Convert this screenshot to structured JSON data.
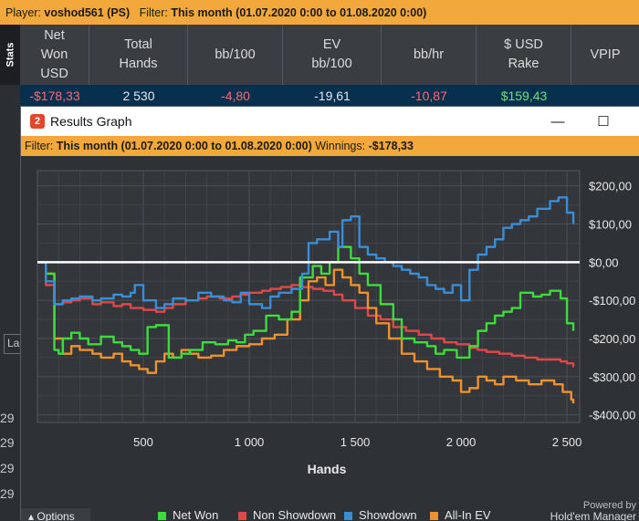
{
  "player_bar": {
    "player_label": "Player:",
    "player_name": "voshod561 (PS)",
    "filter_label": "Filter:",
    "filter_value": "This month (01.07.2020 0:00 to 01.08.2020 0:00)"
  },
  "stats_tab_label": "Stats",
  "stats_columns": [
    "Net\nWon\nUSD",
    "Total\nHands",
    "bb/100",
    "EV\nbb/100",
    "bb/hr",
    "$ USD\nRake",
    "VPIP"
  ],
  "stats_values": [
    "-$178,33",
    "2 530",
    "-4,80",
    "-19,61",
    "-10,87",
    "$159,43",
    ""
  ],
  "stats_colors": [
    "#ff6b6b",
    "#e6e6e6",
    "#ff6b6b",
    "#e6e6e6",
    "#ff6b6b",
    "#6fe07a",
    "#e6e6e6"
  ],
  "left_marks": [
    "29",
    "29",
    "29",
    "29"
  ],
  "la_text": "La",
  "window": {
    "icon_label": "2",
    "title": "Results Graph",
    "minimize_glyph": "—",
    "maximize_glyph": "☐"
  },
  "graph_filter": {
    "filter_label": "Filter:",
    "filter_value": "This month (01.07.2020 0:00 to 01.08.2020 0:00)",
    "winnings_label": "Winnings:",
    "winnings_value": "-$178,33"
  },
  "chart_data": {
    "type": "line",
    "xlabel": "Hands",
    "ylabel": "",
    "xlim": [
      0,
      2560
    ],
    "ylim": [
      -420,
      240
    ],
    "x_ticks": [
      500,
      1000,
      1500,
      2000,
      2500
    ],
    "x_tick_labels": [
      "500",
      "1 000",
      "1 500",
      "2 000",
      "2 500"
    ],
    "y_ticks": [
      200,
      100,
      0,
      -100,
      -200,
      -300,
      -400
    ],
    "y_tick_labels": [
      "$200,00",
      "$100,00",
      "$0,00",
      "-$100,00",
      "-$200,00",
      "-$300,00",
      "-$400,00"
    ],
    "grid": true,
    "zero_line": true,
    "legend_position": "bottom",
    "series": [
      {
        "name": "Net Won",
        "color": "#3ddc3d",
        "x": [
          0,
          40,
          80,
          100,
          120,
          160,
          200,
          240,
          300,
          360,
          400,
          440,
          480,
          520,
          560,
          620,
          680,
          720,
          780,
          840,
          900,
          940,
          980,
          1020,
          1080,
          1140,
          1200,
          1240,
          1300,
          1340,
          1380,
          1420,
          1480,
          1520,
          1560,
          1620,
          1680,
          1720,
          1780,
          1840,
          1880,
          1920,
          1980,
          2040,
          2080,
          2120,
          2160,
          2200,
          2240,
          2280,
          2340,
          2380,
          2420,
          2470,
          2500,
          2530
        ],
        "y": [
          0,
          -30,
          -230,
          -240,
          -200,
          -185,
          -200,
          -215,
          -195,
          -210,
          -220,
          -230,
          -240,
          -170,
          -165,
          -250,
          -240,
          -230,
          -210,
          -215,
          -205,
          -210,
          -190,
          -180,
          -140,
          -150,
          -130,
          -40,
          -10,
          -30,
          0,
          40,
          10,
          -30,
          -60,
          -110,
          -150,
          -200,
          -210,
          -220,
          -240,
          -230,
          -250,
          -220,
          -180,
          -160,
          -140,
          -130,
          -120,
          -80,
          -90,
          -85,
          -75,
          -95,
          -160,
          -180
        ]
      },
      {
        "name": "Non Showdown",
        "color": "#e04848",
        "x": [
          0,
          40,
          80,
          120,
          160,
          200,
          260,
          300,
          360,
          400,
          440,
          500,
          560,
          600,
          640,
          700,
          760,
          800,
          860,
          920,
          960,
          1000,
          1060,
          1100,
          1150,
          1200,
          1240,
          1300,
          1350,
          1400,
          1440,
          1500,
          1560,
          1620,
          1680,
          1740,
          1800,
          1860,
          1920,
          1980,
          2040,
          2080,
          2120,
          2180,
          2240,
          2300,
          2360,
          2420,
          2470,
          2500,
          2530
        ],
        "y": [
          0,
          -60,
          -110,
          -105,
          -100,
          -95,
          -110,
          -105,
          -115,
          -110,
          -120,
          -125,
          -130,
          -120,
          -110,
          -100,
          -95,
          -90,
          -95,
          -90,
          -85,
          -80,
          -75,
          -70,
          -65,
          -60,
          -65,
          -70,
          -75,
          -85,
          -100,
          -120,
          -140,
          -150,
          -170,
          -180,
          -190,
          -200,
          -210,
          -215,
          -225,
          -230,
          -235,
          -240,
          -245,
          -250,
          -255,
          -255,
          -260,
          -265,
          -275
        ]
      },
      {
        "name": "Showdown",
        "color": "#3a8ed8",
        "x": [
          0,
          40,
          80,
          120,
          160,
          200,
          260,
          300,
          360,
          400,
          440,
          460,
          500,
          560,
          600,
          640,
          700,
          760,
          820,
          880,
          920,
          960,
          1000,
          1060,
          1100,
          1140,
          1200,
          1250,
          1280,
          1320,
          1380,
          1420,
          1440,
          1480,
          1520,
          1560,
          1600,
          1640,
          1680,
          1720,
          1760,
          1800,
          1840,
          1880,
          1920,
          1960,
          2000,
          2040,
          2080,
          2120,
          2160,
          2200,
          2240,
          2280,
          2320,
          2360,
          2420,
          2460,
          2500,
          2530
        ],
        "y": [
          0,
          -50,
          -110,
          -100,
          -95,
          -90,
          -100,
          -95,
          -85,
          -90,
          -80,
          -60,
          -100,
          -120,
          -110,
          -95,
          -100,
          -80,
          -90,
          -100,
          -105,
          -80,
          -110,
          -120,
          -90,
          -80,
          -70,
          -30,
          50,
          60,
          80,
          40,
          110,
          120,
          40,
          20,
          10,
          0,
          -10,
          -20,
          -30,
          -40,
          -60,
          -70,
          -80,
          -60,
          -100,
          -20,
          20,
          40,
          60,
          90,
          100,
          110,
          120,
          140,
          160,
          170,
          130,
          100
        ]
      },
      {
        "name": "All-In EV",
        "color": "#f0922c",
        "x": [
          0,
          40,
          80,
          120,
          160,
          200,
          260,
          300,
          360,
          400,
          440,
          480,
          520,
          560,
          600,
          640,
          680,
          720,
          760,
          820,
          880,
          940,
          1000,
          1060,
          1120,
          1180,
          1240,
          1280,
          1320,
          1360,
          1400,
          1440,
          1480,
          1520,
          1560,
          1600,
          1660,
          1720,
          1780,
          1840,
          1900,
          1960,
          2000,
          2040,
          2080,
          2120,
          2160,
          2200,
          2260,
          2320,
          2380,
          2440,
          2480,
          2520,
          2530
        ],
        "y": [
          0,
          -30,
          -200,
          -240,
          -220,
          -230,
          -240,
          -250,
          -240,
          -260,
          -270,
          -280,
          -290,
          -260,
          -240,
          -250,
          -230,
          -240,
          -250,
          -245,
          -230,
          -220,
          -215,
          -200,
          -190,
          -150,
          -100,
          -50,
          -40,
          -60,
          -20,
          -40,
          -60,
          -80,
          -120,
          -160,
          -200,
          -240,
          -260,
          -280,
          -300,
          -310,
          -340,
          -330,
          -300,
          -310,
          -320,
          -300,
          -310,
          -320,
          -310,
          -320,
          -340,
          -360,
          -370
        ]
      }
    ]
  },
  "powered_by": "Powered by",
  "powered_brand": "Hold'em Manager",
  "options_label": "Options"
}
